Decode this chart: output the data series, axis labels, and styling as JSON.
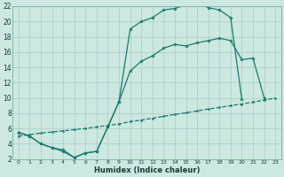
{
  "line1_x": [
    0,
    1,
    2,
    3,
    4,
    5,
    6,
    7,
    8,
    9,
    10,
    11,
    12,
    13,
    14,
    15,
    16,
    17,
    18,
    19,
    20
  ],
  "line1_y": [
    5.5,
    5.0,
    4.0,
    3.5,
    3.0,
    2.2,
    2.8,
    3.0,
    6.2,
    9.5,
    19.0,
    20.0,
    20.5,
    21.5,
    21.7,
    22.2,
    22.5,
    21.8,
    21.5,
    20.5,
    9.8
  ],
  "line2_x": [
    0,
    1,
    2,
    3,
    4,
    5,
    6,
    7,
    8,
    9,
    10,
    11,
    12,
    13,
    14,
    15,
    16,
    17,
    18,
    19,
    20,
    21,
    22
  ],
  "line2_y": [
    5.5,
    5.0,
    4.0,
    3.5,
    3.2,
    2.2,
    2.8,
    3.0,
    6.2,
    9.5,
    13.5,
    14.8,
    15.5,
    16.5,
    17.0,
    16.8,
    17.2,
    17.5,
    17.8,
    17.5,
    15.0,
    15.2,
    10.0
  ],
  "line3_x": [
    0,
    1,
    2,
    3,
    4,
    5,
    6,
    7,
    8,
    9,
    10,
    11,
    12,
    13,
    14,
    15,
    16,
    17,
    18,
    19,
    20,
    21,
    22,
    23
  ],
  "line3_y": [
    5.0,
    5.2,
    5.4,
    5.55,
    5.7,
    5.85,
    6.0,
    6.2,
    6.4,
    6.6,
    6.9,
    7.1,
    7.35,
    7.6,
    7.85,
    8.05,
    8.3,
    8.55,
    8.75,
    9.0,
    9.2,
    9.45,
    9.7,
    10.0
  ],
  "color": "#1a7a6e",
  "bg_color": "#cce8e0",
  "grid_color": "#aaccc4",
  "xlabel": "Humidex (Indice chaleur)",
  "xlim": [
    -0.5,
    23.5
  ],
  "ylim": [
    2,
    22
  ],
  "xticks": [
    0,
    1,
    2,
    3,
    4,
    5,
    6,
    7,
    8,
    9,
    10,
    11,
    12,
    13,
    14,
    15,
    16,
    17,
    18,
    19,
    20,
    21,
    22,
    23
  ],
  "yticks": [
    2,
    4,
    6,
    8,
    10,
    12,
    14,
    16,
    18,
    20,
    22
  ]
}
